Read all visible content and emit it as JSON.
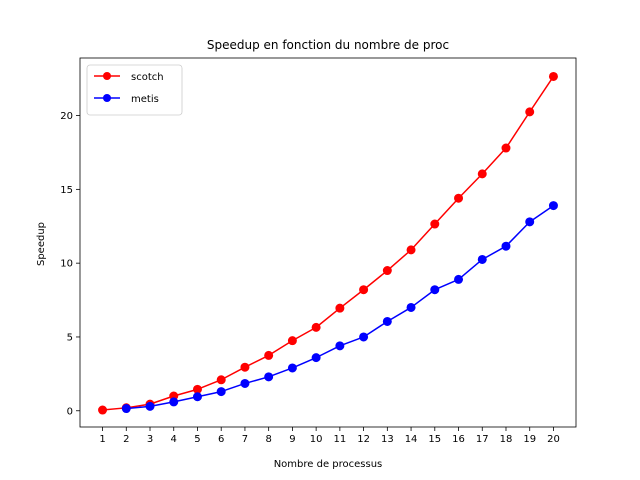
{
  "chart_data": {
    "type": "line",
    "title": "Speedup en fonction du nombre de proc",
    "xlabel": "Nombre de processus",
    "ylabel": "Speedup",
    "xlim": [
      0.05,
      20.95
    ],
    "ylim": [
      -1.1,
      23.9
    ],
    "xticks": [
      1,
      2,
      3,
      4,
      5,
      6,
      7,
      8,
      9,
      10,
      11,
      12,
      13,
      14,
      15,
      16,
      17,
      18,
      19,
      20
    ],
    "yticks": [
      0,
      5,
      10,
      15,
      20
    ],
    "grid": false,
    "legend_position": "top-left",
    "series": [
      {
        "name": "scotch",
        "color": "#ff0000",
        "marker": "circle",
        "x": [
          1,
          2,
          3,
          4,
          5,
          6,
          7,
          8,
          9,
          10,
          11,
          12,
          13,
          14,
          15,
          16,
          17,
          18,
          19,
          20
        ],
        "values": [
          0.05,
          0.2,
          0.45,
          1.0,
          1.45,
          2.1,
          2.95,
          3.75,
          4.75,
          5.65,
          6.95,
          8.2,
          9.5,
          10.9,
          12.65,
          14.4,
          16.05,
          17.8,
          20.25,
          22.65
        ]
      },
      {
        "name": "metis",
        "color": "#0000ff",
        "marker": "circle",
        "x": [
          2,
          3,
          4,
          5,
          6,
          7,
          8,
          9,
          10,
          11,
          12,
          13,
          14,
          15,
          16,
          17,
          18,
          19,
          20
        ],
        "values": [
          0.15,
          0.3,
          0.6,
          0.95,
          1.3,
          1.85,
          2.3,
          2.9,
          3.6,
          4.4,
          5.0,
          6.05,
          7.0,
          8.2,
          8.9,
          10.25,
          11.15,
          12.8,
          13.9
        ]
      }
    ]
  }
}
